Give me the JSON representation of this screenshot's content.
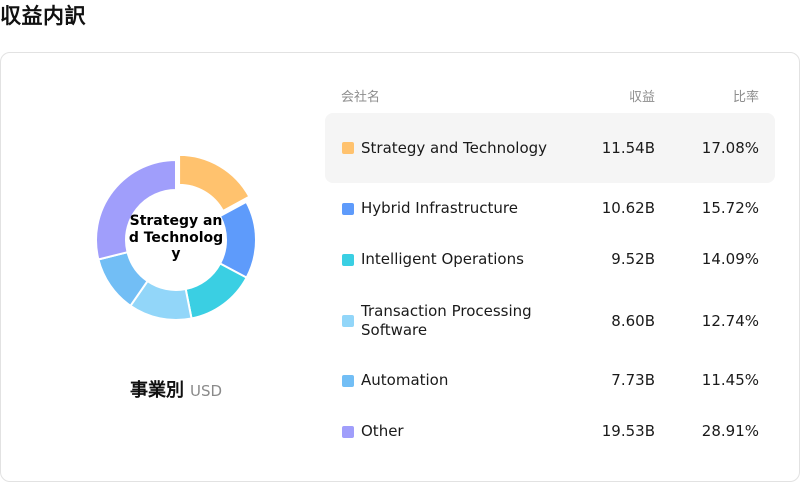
{
  "page": {
    "title": "収益内訳"
  },
  "table": {
    "headers": {
      "company": "会社名",
      "revenue": "収益",
      "ratio": "比率"
    },
    "rows": [
      {
        "name": "Strategy and Technology",
        "revenue": "11.54B",
        "ratio": "17.08%",
        "color": "#FFC26E",
        "highlighted": true
      },
      {
        "name": "Hybrid Infrastructure",
        "revenue": "10.62B",
        "ratio": "15.72%",
        "color": "#5E9BFB",
        "highlighted": false
      },
      {
        "name": "Intelligent Operations",
        "revenue": "9.52B",
        "ratio": "14.09%",
        "color": "#3ACFE3",
        "highlighted": false
      },
      {
        "name": "Transaction Processing Software",
        "revenue": "8.60B",
        "ratio": "12.74%",
        "color": "#92D6F9",
        "highlighted": false
      },
      {
        "name": "Automation",
        "revenue": "7.73B",
        "ratio": "11.45%",
        "color": "#72BEF5",
        "highlighted": false
      },
      {
        "name": "Other",
        "revenue": "19.53B",
        "ratio": "28.91%",
        "color": "#A09EFB",
        "highlighted": false
      }
    ]
  },
  "chart_data": {
    "type": "pie",
    "center_label": "Strategy and Technology",
    "caption": "事業別",
    "unit": "USD",
    "slices": [
      {
        "label": "Strategy and Technology",
        "value": 17.08,
        "color": "#FFC26E"
      },
      {
        "label": "Hybrid Infrastructure",
        "value": 15.72,
        "color": "#5E9BFB"
      },
      {
        "label": "Intelligent Operations",
        "value": 14.09,
        "color": "#3ACFE3"
      },
      {
        "label": "Transaction Processing Software",
        "value": 12.74,
        "color": "#92D6F9"
      },
      {
        "label": "Automation",
        "value": 11.45,
        "color": "#72BEF5"
      },
      {
        "label": "Other",
        "value": 28.91,
        "color": "#A09EFB"
      }
    ],
    "selected_slice": "Strategy and Technology"
  }
}
